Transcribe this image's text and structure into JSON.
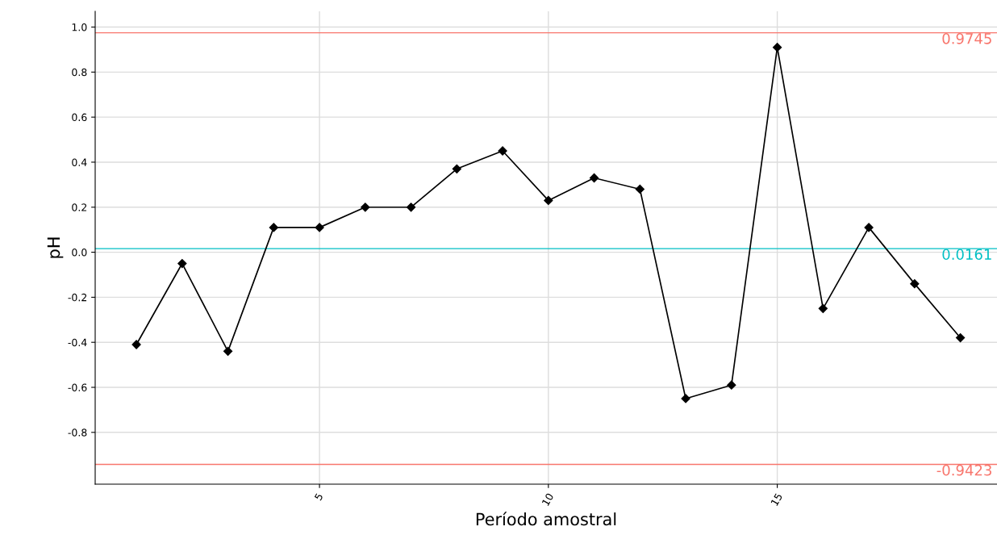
{
  "chart_data": {
    "type": "line",
    "xlabel": "Período amostral",
    "ylabel": "pH",
    "x": [
      1,
      2,
      3,
      4,
      5,
      6,
      7,
      8,
      9,
      10,
      11,
      12,
      13,
      14,
      15,
      16,
      17,
      18,
      19
    ],
    "series": [
      {
        "color": "#000000",
        "values": [
          -0.41,
          -0.05,
          -0.44,
          0.11,
          0.11,
          0.2,
          0.2,
          0.37,
          0.45,
          0.23,
          0.33,
          0.28,
          -0.65,
          -0.59,
          0.91,
          -0.25,
          0.11,
          -0.14,
          -0.38
        ]
      }
    ],
    "xlim": [
      0.1,
      19.8
    ],
    "ylim": [
      -1.03,
      1.07
    ],
    "xticks": [
      5,
      10,
      15
    ],
    "yticks": [
      {
        "value": -0.8,
        "label": "-0.8"
      },
      {
        "value": -0.6,
        "label": "-0.6"
      },
      {
        "value": -0.4,
        "label": "-0.4"
      },
      {
        "value": -0.2,
        "label": "-0.2"
      },
      {
        "value": 0.0,
        "label": "0.0"
      },
      {
        "value": 0.2,
        "label": "0.2"
      },
      {
        "value": 0.4,
        "label": "0.4"
      },
      {
        "value": 0.6,
        "label": "0.6"
      },
      {
        "value": 0.8,
        "label": "0.8"
      },
      {
        "value": 1.0,
        "label": "1.0"
      }
    ],
    "ref_lines": [
      {
        "axis": "y",
        "value": 0.9745,
        "label": "0.9745",
        "color": "#f8766d"
      },
      {
        "axis": "y",
        "value": 0.0161,
        "label": "0.0161",
        "color": "#00bfc4"
      },
      {
        "axis": "y",
        "value": -0.9423,
        "label": "-0.9423",
        "color": "#f8766d"
      }
    ],
    "grid": true,
    "marker": "diamond",
    "line_style": "solid"
  }
}
